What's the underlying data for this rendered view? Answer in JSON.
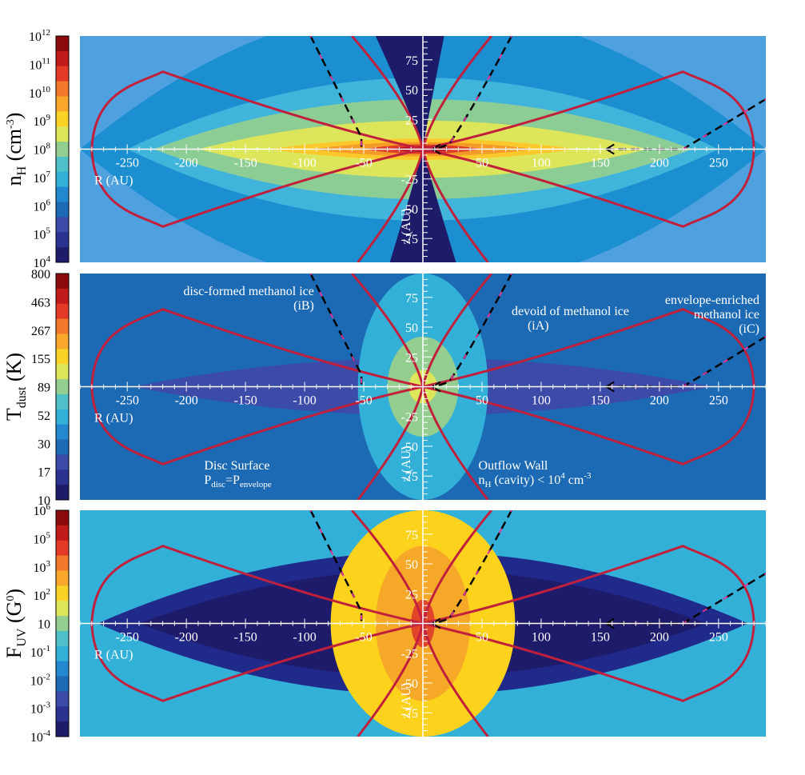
{
  "chart_data": [
    {
      "type": "heatmap",
      "panel": "density",
      "colorbar": {
        "label_main": "n",
        "label_sub": "H",
        "label_unit": "(cm",
        "label_unit_sup": "-3",
        "label_close": ")",
        "ticks": [
          {
            "base": "10",
            "exp": "12"
          },
          {
            "base": "10",
            "exp": "11"
          },
          {
            "base": "10",
            "exp": "10"
          },
          {
            "base": "10",
            "exp": "9"
          },
          {
            "base": "10",
            "exp": "8"
          },
          {
            "base": "10",
            "exp": "7"
          },
          {
            "base": "10",
            "exp": "6"
          },
          {
            "base": "10",
            "exp": "5"
          },
          {
            "base": "10",
            "exp": "4"
          }
        ]
      },
      "xlabel": "R (AU)",
      "ylabel": "z (AU)",
      "xlim": [
        -290,
        290
      ],
      "ylim": [
        -95,
        95
      ],
      "xticks": [
        "-250",
        "-200",
        "-150",
        "-100",
        "-50",
        "50",
        "100",
        "150",
        "200",
        "250"
      ],
      "xtick_values": [
        -250,
        -200,
        -150,
        -100,
        -50,
        50,
        100,
        150,
        200,
        250
      ],
      "yticks": [
        "75",
        "50",
        "25",
        "-25",
        "-50",
        "-75"
      ],
      "ytick_values": [
        75,
        50,
        25,
        -25,
        -50,
        -75
      ],
      "background_color": "#4fa0de",
      "contours": [
        {
          "rx": 290,
          "h": 120,
          "color": "#1c8fd0"
        },
        {
          "rx": 250,
          "h": 60,
          "color": "#41b4dc"
        },
        {
          "rx": 228,
          "h": 42,
          "color": "#8ccd96"
        },
        {
          "rx": 190,
          "h": 24,
          "color": "#dde65a"
        },
        {
          "rx": 130,
          "h": 9,
          "color": "#fcc72a"
        },
        {
          "rx": 95,
          "h": 6,
          "color": "#f39a28"
        },
        {
          "rx": 50,
          "h": 4,
          "color": "#dc3c28"
        },
        {
          "rx": 28,
          "h": 2.5,
          "color": "#b01020"
        }
      ],
      "cavity_color": "#1f1b6b",
      "annotations": []
    },
    {
      "type": "heatmap",
      "panel": "dust temperature",
      "colorbar": {
        "label_main": "T",
        "label_sub": "dust",
        "label_unit": "(K)",
        "label_unit_sup": "",
        "label_close": "",
        "ticks": [
          {
            "base": "800",
            "exp": ""
          },
          {
            "base": "463",
            "exp": ""
          },
          {
            "base": "267",
            "exp": ""
          },
          {
            "base": "155",
            "exp": ""
          },
          {
            "base": "89",
            "exp": ""
          },
          {
            "base": "52",
            "exp": ""
          },
          {
            "base": "30",
            "exp": ""
          },
          {
            "base": "17",
            "exp": ""
          },
          {
            "base": "10",
            "exp": ""
          }
        ]
      },
      "xlabel": "R (AU)",
      "ylabel": "z (AU)",
      "xlim": [
        -290,
        290
      ],
      "ylim": [
        -95,
        95
      ],
      "xticks": [
        "-250",
        "-200",
        "-150",
        "-100",
        "-50",
        "50",
        "100",
        "150",
        "200",
        "250"
      ],
      "xtick_values": [
        -250,
        -200,
        -150,
        -100,
        -50,
        50,
        100,
        150,
        200,
        250
      ],
      "yticks": [
        "75",
        "50",
        "25",
        "-25",
        "-50",
        "-75"
      ],
      "ytick_values": [
        75,
        50,
        25,
        -25,
        -50,
        -75
      ],
      "background_color": "#1c6ab4",
      "contours": [
        {
          "rx": 245,
          "h": 24,
          "color": "#3c4aa8"
        }
      ],
      "inner_blobs": [
        {
          "rx": 55,
          "ry": 95,
          "color": "#33b0d8"
        },
        {
          "rx": 30,
          "ry": 42,
          "color": "#93ce90"
        },
        {
          "rx": 12,
          "ry": 14,
          "color": "#dde65a"
        }
      ],
      "annotations": [
        {
          "text": "disc-formed methanol ice",
          "sub": ""
        },
        {
          "text": "(iB)",
          "sub": ""
        },
        {
          "text": "devoid of methanol ice",
          "sub": ""
        },
        {
          "text": "(iA)",
          "sub": ""
        },
        {
          "text": "envelope-enriched",
          "sub": ""
        },
        {
          "text": "methanol ice",
          "sub": ""
        },
        {
          "text": "(iC)",
          "sub": ""
        }
      ],
      "disc_surface": {
        "title": "Disc Surface",
        "p1": "P",
        "p1_sub": "disc",
        "eq": "=P",
        "p2_sub": "envelope"
      },
      "outflow_wall": {
        "title": "Outflow Wall",
        "n": "n",
        "n_sub": "H",
        "rest": " (cavity) < 10",
        "exp": "4",
        "unit": " cm",
        "unit_exp": "-3"
      }
    },
    {
      "type": "heatmap",
      "panel": "UV flux",
      "colorbar": {
        "label_main": "F",
        "label_sub": "UV",
        "label_unit": "(G",
        "label_unit_sup": "0",
        "label_close": ")",
        "ticks": [
          {
            "base": "10",
            "exp": "6"
          },
          {
            "base": "10",
            "exp": "5"
          },
          {
            "base": "10",
            "exp": "3"
          },
          {
            "base": "10",
            "exp": "2"
          },
          {
            "base": "10",
            "exp": ""
          },
          {
            "base": "10",
            "exp": "-1"
          },
          {
            "base": "10",
            "exp": "-2"
          },
          {
            "base": "10",
            "exp": "-3"
          },
          {
            "base": "10",
            "exp": "-4"
          }
        ]
      },
      "xlabel": "R (AU)",
      "ylabel": "z (AU)",
      "xlim": [
        -290,
        290
      ],
      "ylim": [
        -95,
        95
      ],
      "xticks": [
        "-250",
        "-200",
        "-150",
        "-100",
        "-50",
        "50",
        "100",
        "150",
        "200",
        "250"
      ],
      "xtick_values": [
        -250,
        -200,
        -150,
        -100,
        -50,
        50,
        100,
        150,
        200,
        250
      ],
      "yticks": [
        "75",
        "50",
        "25",
        "-25",
        "-50",
        "-75"
      ],
      "ytick_values": [
        75,
        50,
        25,
        -25,
        -50,
        -75
      ],
      "background_color": "#33b0d8",
      "contours": [
        {
          "rx": 275,
          "h": 60,
          "color": "#1f2a8a"
        },
        {
          "rx": 240,
          "h": 45,
          "color": "#1f1b6b"
        }
      ],
      "inner_blobs": [
        {
          "rx": 78,
          "ry": 95,
          "color": "#fdd21d"
        },
        {
          "rx": 40,
          "ry": 65,
          "color": "#f6a828"
        },
        {
          "rx": 10,
          "ry": 20,
          "color": "#e0452a"
        }
      ],
      "annotations": []
    }
  ],
  "colorbar_colors": [
    "#8b0a0a",
    "#c01a1a",
    "#e33a27",
    "#f37a2a",
    "#f9a82c",
    "#fbd326",
    "#dde65a",
    "#93ce90",
    "#4fc0c8",
    "#33b0d8",
    "#2288d0",
    "#1c6ab4",
    "#3c4aa8",
    "#2b318f",
    "#1f1b6b"
  ],
  "curve_color": "#c0203c",
  "trajectory_colors": {
    "dash_black": "#000000",
    "dash_pink": "#e0359a"
  }
}
